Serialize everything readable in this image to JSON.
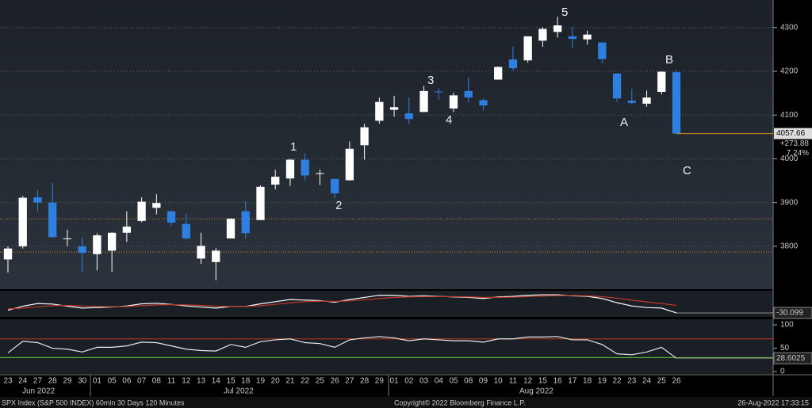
{
  "chart_data": [
    {
      "type": "candlestick",
      "categories": [
        "23",
        "24",
        "27",
        "28",
        "29",
        "30",
        "01",
        "05",
        "06",
        "07",
        "08",
        "11",
        "12",
        "13",
        "14",
        "15",
        "18",
        "19",
        "20",
        "21",
        "22",
        "25",
        "26",
        "27",
        "28",
        "29",
        "01",
        "02",
        "03",
        "04",
        "05",
        "08",
        "09",
        "10",
        "11",
        "12",
        "15",
        "16",
        "17",
        "18",
        "19",
        "22",
        "23",
        "24",
        "25",
        "26"
      ],
      "open": [
        3770,
        3800,
        3912,
        3900,
        3818,
        3800,
        3782,
        3790,
        3831,
        3858,
        3888,
        3880,
        3851,
        3772,
        3764,
        3818,
        3880,
        3860,
        3941,
        3955,
        3998,
        3966,
        3954,
        3951,
        4031,
        4087,
        4112,
        4104,
        4107,
        4154,
        4115,
        4155,
        4134,
        4181,
        4227,
        4225,
        4270,
        4290,
        4280,
        4273,
        4266,
        4195,
        4133,
        4126,
        4153,
        4198
      ],
      "high": [
        3800,
        3915,
        3928,
        3945,
        3838,
        3820,
        3830,
        3832,
        3880,
        3912,
        3919,
        3880,
        3874,
        3831,
        3796,
        3864,
        3902,
        3939,
        3975,
        4000,
        4013,
        3975,
        3954,
        4040,
        4080,
        4140,
        4144,
        4140,
        4167,
        4161,
        4151,
        4186,
        4138,
        4211,
        4257,
        4280,
        4301,
        4325,
        4302,
        4293,
        4266,
        4195,
        4160,
        4156,
        4200,
        4203
      ],
      "low": [
        3740,
        3795,
        3880,
        3820,
        3800,
        3740,
        3745,
        3742,
        3810,
        3855,
        3873,
        3847,
        3815,
        3760,
        3722,
        3818,
        3818,
        3860,
        3930,
        3938,
        3950,
        3940,
        3910,
        3950,
        3998,
        4080,
        4096,
        4079,
        4107,
        4135,
        4107,
        4128,
        4110,
        4181,
        4201,
        4220,
        4256,
        4277,
        4253,
        4261,
        4218,
        4130,
        4124,
        4119,
        4147,
        4057
      ],
      "close": [
        3795,
        3911,
        3900,
        3821,
        3818,
        3785,
        3825,
        3831,
        3845,
        3902,
        3899,
        3854,
        3818,
        3801,
        3790,
        3863,
        3830,
        3936,
        3959,
        3998,
        3962,
        3967,
        3921,
        4023,
        4072,
        4130,
        4118,
        4091,
        4155,
        4152,
        4145,
        4140,
        4122,
        4210,
        4207,
        4280,
        4297,
        4305,
        4274,
        4284,
        4228,
        4138,
        4128,
        4140,
        4199,
        4057.66
      ],
      "up_color": "#ffffff",
      "down_color": "#2f7fe0",
      "ylim": [
        3702,
        4363
      ],
      "yticks": [
        3800,
        3900,
        4000,
        4100,
        4200,
        4300
      ],
      "reference_lines": [
        3863,
        3787
      ],
      "last_price": {
        "value": 4057.66,
        "label": "4057.66"
      },
      "change_label": "+273.88",
      "change_pct_label": "7.24%",
      "wave_labels": [
        "1",
        "2",
        "3",
        "4",
        "5",
        "A",
        "B",
        "C"
      ],
      "months": [
        "Jun 2022",
        "Jul 2022",
        "Aug 2022"
      ],
      "footer": [
        "SPX Index (S&P 500 INDEX) 60min 30 Days 120 Minutes",
        "Copyright© 2022 Bloomberg Finance L.P.",
        "26-Aug-2022 17:33:15"
      ]
    },
    {
      "type": "line",
      "series": [
        {
          "color": "#ffffff",
          "values": [
            -20,
            -5,
            5,
            3,
            -5,
            -12,
            -10,
            -8,
            -4,
            4,
            6,
            2,
            -4,
            -8,
            -12,
            -6,
            -6,
            4,
            12,
            20,
            18,
            16,
            10,
            20,
            28,
            36,
            36,
            32,
            34,
            32,
            30,
            28,
            24,
            30,
            32,
            36,
            38,
            38,
            34,
            32,
            24,
            8,
            -4,
            -10,
            -12,
            -30.099
          ]
        },
        {
          "color": "#c0392b",
          "values": [
            -15,
            -12,
            -7,
            -3,
            -2,
            -4,
            -6,
            -7,
            -6,
            -3,
            0,
            1,
            0,
            -2,
            -5,
            -6,
            -6,
            -3,
            2,
            8,
            12,
            14,
            13,
            15,
            19,
            24,
            28,
            30,
            31,
            31,
            31,
            30,
            28,
            28,
            29,
            31,
            33,
            35,
            35,
            34,
            31,
            25,
            18,
            11,
            5,
            -2
          ]
        }
      ],
      "ylim": [
        -45,
        50
      ],
      "last_value": -30.099
    },
    {
      "type": "line",
      "series": [
        {
          "color": "#e8e8e8",
          "values": [
            40,
            65,
            62,
            50,
            48,
            42,
            52,
            52,
            55,
            63,
            62,
            55,
            48,
            45,
            44,
            58,
            52,
            64,
            68,
            70,
            62,
            60,
            52,
            68,
            72,
            75,
            72,
            66,
            70,
            68,
            66,
            66,
            63,
            70,
            70,
            74,
            74,
            75,
            68,
            68,
            58,
            38,
            36,
            42,
            52,
            28.6025
          ]
        }
      ],
      "ylim": [
        -5,
        112
      ],
      "yticks": [
        0,
        50,
        100
      ],
      "reference_lines": [
        {
          "value": 70,
          "color": "#c0392b"
        },
        {
          "value": 30,
          "color": "#6ad13c"
        }
      ],
      "last_value": 28.6025
    }
  ]
}
